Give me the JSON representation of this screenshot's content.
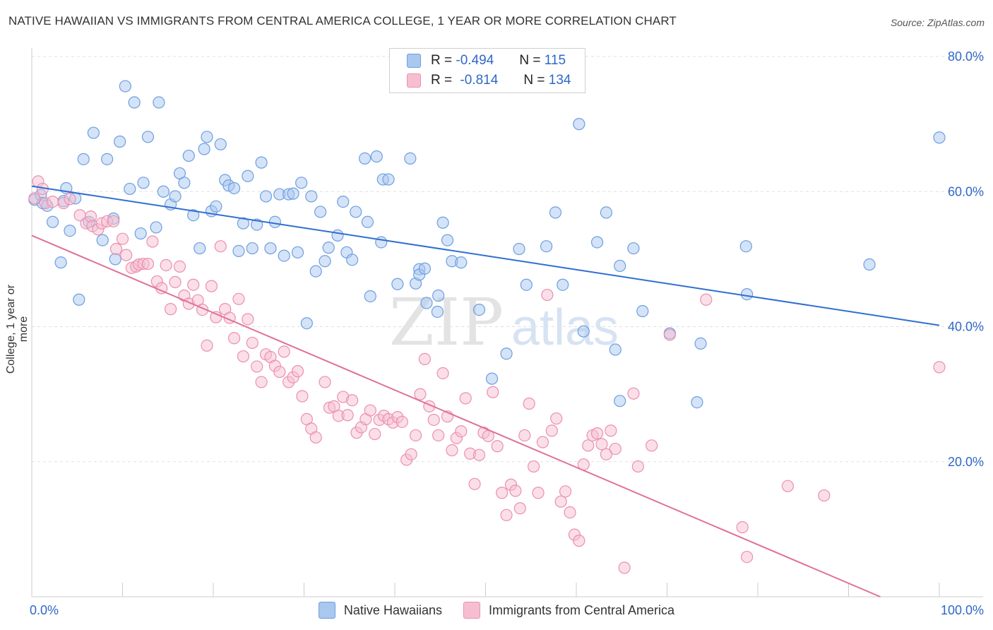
{
  "title": "NATIVE HAWAIIAN VS IMMIGRANTS FROM CENTRAL AMERICA COLLEGE, 1 YEAR OR MORE CORRELATION CHART",
  "source": "Source: ZipAtlas.com",
  "watermark": {
    "zip": "ZIP",
    "atlas": "atlas"
  },
  "legend": {
    "r_label": "R =",
    "n_label": "N =",
    "series1": {
      "r": "-0.494",
      "n": "115"
    },
    "series2": {
      "r": "-0.814",
      "n": "134"
    }
  },
  "colors": {
    "blue_fill": "#a9c7ef",
    "blue_stroke": "#6d9fe0",
    "blue_line": "#2f6fd0",
    "pink_fill": "#f6bfd1",
    "pink_stroke": "#ec8fae",
    "pink_line": "#e0709a",
    "tick_label": "#2f67c7"
  },
  "chart_data": {
    "type": "scatter",
    "xlabel": "",
    "ylabel": "College, 1 year or more",
    "xlim": [
      0,
      100
    ],
    "ylim": [
      0,
      80
    ],
    "x_tick_labels": [
      "0.0%",
      "100.0%"
    ],
    "y_tick_labels": [
      "20.0%",
      "40.0%",
      "60.0%",
      "80.0%"
    ],
    "y_ticks": [
      20,
      40,
      60,
      80
    ],
    "grid": true,
    "series": [
      {
        "name": "Native Hawaiians",
        "trend": {
          "x": [
            0,
            100
          ],
          "y": [
            60.8,
            40.2
          ]
        },
        "points": [
          [
            0.3,
            58.8
          ],
          [
            1,
            59.5
          ],
          [
            1.2,
            58.3
          ],
          [
            1.7,
            57.9
          ],
          [
            2.3,
            55.5
          ],
          [
            3.2,
            49.5
          ],
          [
            3.5,
            58.6
          ],
          [
            3.8,
            60.5
          ],
          [
            4.2,
            54.2
          ],
          [
            4.8,
            59
          ],
          [
            5.2,
            44
          ],
          [
            5.7,
            64.8
          ],
          [
            6.3,
            55.5
          ],
          [
            6.8,
            68.7
          ],
          [
            7.8,
            52.8
          ],
          [
            8.3,
            64.8
          ],
          [
            9,
            56
          ],
          [
            9.2,
            50
          ],
          [
            9.7,
            67.4
          ],
          [
            10.3,
            75.6
          ],
          [
            10.8,
            60.4
          ],
          [
            11.3,
            73.2
          ],
          [
            12,
            53.8
          ],
          [
            12.3,
            61.3
          ],
          [
            12.8,
            68.1
          ],
          [
            13.7,
            54.7
          ],
          [
            14,
            73.2
          ],
          [
            14.5,
            60
          ],
          [
            15.3,
            58.1
          ],
          [
            15.8,
            59.3
          ],
          [
            16.3,
            62.7
          ],
          [
            16.8,
            61.3
          ],
          [
            17.3,
            65.3
          ],
          [
            17.8,
            56.5
          ],
          [
            18.5,
            51.6
          ],
          [
            19,
            66.3
          ],
          [
            19.3,
            68.1
          ],
          [
            19.8,
            57.1
          ],
          [
            20.3,
            57.8
          ],
          [
            20.8,
            67
          ],
          [
            21.3,
            61.7
          ],
          [
            21.7,
            60.9
          ],
          [
            22.3,
            60.5
          ],
          [
            22.8,
            51.2
          ],
          [
            23.3,
            55.3
          ],
          [
            23.8,
            62.3
          ],
          [
            24.3,
            51.6
          ],
          [
            24.8,
            55.1
          ],
          [
            25.3,
            64.3
          ],
          [
            25.8,
            59.3
          ],
          [
            26.3,
            51.6
          ],
          [
            26.8,
            55.5
          ],
          [
            27.3,
            59.6
          ],
          [
            27.8,
            50.5
          ],
          [
            28.3,
            59.6
          ],
          [
            28.8,
            59.7
          ],
          [
            29.3,
            51
          ],
          [
            29.7,
            61.3
          ],
          [
            30.3,
            40.5
          ],
          [
            30.8,
            59.3
          ],
          [
            31.3,
            48.2
          ],
          [
            31.8,
            57
          ],
          [
            32.3,
            49.7
          ],
          [
            32.7,
            51.7
          ],
          [
            33.7,
            53.5
          ],
          [
            34.3,
            58.5
          ],
          [
            34.7,
            51
          ],
          [
            35.3,
            49.9
          ],
          [
            35.7,
            57
          ],
          [
            36.7,
            64.9
          ],
          [
            37,
            55.5
          ],
          [
            37.3,
            44.5
          ],
          [
            38,
            65.2
          ],
          [
            38.5,
            52.5
          ],
          [
            38.7,
            61.8
          ],
          [
            39.3,
            61.8
          ],
          [
            40.3,
            46.3
          ],
          [
            41.7,
            64.9
          ],
          [
            42.3,
            46.4
          ],
          [
            42.7,
            48.5
          ],
          [
            42.7,
            47.7
          ],
          [
            43.3,
            48.6
          ],
          [
            43.5,
            43.5
          ],
          [
            44.7,
            42.2
          ],
          [
            44.8,
            44.6
          ],
          [
            45.3,
            55.4
          ],
          [
            45.8,
            52.8
          ],
          [
            46.3,
            49.7
          ],
          [
            47.3,
            49.5
          ],
          [
            49.3,
            42.5
          ],
          [
            50.7,
            32.3
          ],
          [
            52.3,
            36
          ],
          [
            53.7,
            51.5
          ],
          [
            54.5,
            46.2
          ],
          [
            56.7,
            51.9
          ],
          [
            57.7,
            56.9
          ],
          [
            58.5,
            46.2
          ],
          [
            60.3,
            70
          ],
          [
            60.8,
            39.3
          ],
          [
            62.3,
            52.5
          ],
          [
            63.3,
            56.9
          ],
          [
            64.3,
            36.6
          ],
          [
            64.8,
            29
          ],
          [
            64.8,
            49
          ],
          [
            66.3,
            51.6
          ],
          [
            67.3,
            42.3
          ],
          [
            70.3,
            39
          ],
          [
            73.3,
            28.8
          ],
          [
            73.7,
            37.5
          ],
          [
            78.7,
            51.9
          ],
          [
            78.8,
            44.8
          ],
          [
            92.3,
            49.2
          ],
          [
            100,
            68
          ]
        ]
      },
      {
        "name": "Immigrants from Central America",
        "trend": {
          "x": [
            0,
            93.5
          ],
          "y": [
            53.5,
            0
          ]
        },
        "points": [
          [
            0.3,
            59
          ],
          [
            0.7,
            61.5
          ],
          [
            1.2,
            60.4
          ],
          [
            1.5,
            58.3
          ],
          [
            2.3,
            58.5
          ],
          [
            3.5,
            58.3
          ],
          [
            4.2,
            58.9
          ],
          [
            5.3,
            56.5
          ],
          [
            6,
            55.3
          ],
          [
            6.5,
            56.3
          ],
          [
            6.7,
            54.9
          ],
          [
            7.3,
            54.4
          ],
          [
            7.7,
            55.3
          ],
          [
            8.3,
            55.6
          ],
          [
            9,
            55.6
          ],
          [
            9.3,
            51.5
          ],
          [
            10,
            53
          ],
          [
            10.4,
            50.6
          ],
          [
            11,
            48.7
          ],
          [
            11.5,
            48.9
          ],
          [
            11.8,
            49.2
          ],
          [
            12.3,
            49.3
          ],
          [
            12.8,
            49.3
          ],
          [
            13.3,
            52.6
          ],
          [
            13.8,
            46.7
          ],
          [
            14.3,
            45.7
          ],
          [
            14.8,
            49.1
          ],
          [
            15.3,
            42.6
          ],
          [
            15.8,
            46.6
          ],
          [
            16.3,
            48.9
          ],
          [
            16.8,
            44.6
          ],
          [
            17.3,
            43.4
          ],
          [
            17.8,
            46.2
          ],
          [
            18.3,
            43.9
          ],
          [
            18.8,
            42.5
          ],
          [
            19.3,
            37.2
          ],
          [
            19.8,
            46
          ],
          [
            20.3,
            41.4
          ],
          [
            20.8,
            51.9
          ],
          [
            21.3,
            42.6
          ],
          [
            21.8,
            41.3
          ],
          [
            22.3,
            38.3
          ],
          [
            22.8,
            44.1
          ],
          [
            23.3,
            35.6
          ],
          [
            23.8,
            41.1
          ],
          [
            24.3,
            37.6
          ],
          [
            24.8,
            34.1
          ],
          [
            25.3,
            31.8
          ],
          [
            25.8,
            35.9
          ],
          [
            26.3,
            35.5
          ],
          [
            26.8,
            34.2
          ],
          [
            27.3,
            33.3
          ],
          [
            27.8,
            36.3
          ],
          [
            28.3,
            31.8
          ],
          [
            28.8,
            32.5
          ],
          [
            29.3,
            33.4
          ],
          [
            29.8,
            29.7
          ],
          [
            30.3,
            26.3
          ],
          [
            30.8,
            24.9
          ],
          [
            31.3,
            23.6
          ],
          [
            32.3,
            31.8
          ],
          [
            32.8,
            28
          ],
          [
            33.3,
            28.2
          ],
          [
            33.8,
            26.8
          ],
          [
            34.3,
            29.6
          ],
          [
            34.8,
            26.9
          ],
          [
            35.3,
            29.1
          ],
          [
            35.8,
            24.3
          ],
          [
            36.3,
            25.1
          ],
          [
            36.8,
            26.3
          ],
          [
            37.3,
            27.6
          ],
          [
            37.8,
            24.1
          ],
          [
            38.3,
            26.2
          ],
          [
            38.8,
            26.8
          ],
          [
            39.3,
            26.3
          ],
          [
            39.8,
            25.8
          ],
          [
            40.3,
            26.6
          ],
          [
            40.8,
            25.9
          ],
          [
            41.3,
            20.3
          ],
          [
            41.8,
            21.1
          ],
          [
            42.3,
            23.9
          ],
          [
            42.8,
            30
          ],
          [
            43.3,
            35.2
          ],
          [
            43.8,
            28.2
          ],
          [
            44.3,
            26.2
          ],
          [
            44.8,
            23.9
          ],
          [
            45.3,
            33.1
          ],
          [
            45.8,
            26.7
          ],
          [
            46.3,
            21.7
          ],
          [
            46.8,
            23.5
          ],
          [
            47.3,
            24.5
          ],
          [
            47.8,
            29.4
          ],
          [
            48.3,
            21.2
          ],
          [
            48.8,
            16.7
          ],
          [
            49.3,
            21
          ],
          [
            49.8,
            24.3
          ],
          [
            50.3,
            23.8
          ],
          [
            50.8,
            30.3
          ],
          [
            51.3,
            22.3
          ],
          [
            51.8,
            15.4
          ],
          [
            52.3,
            12.1
          ],
          [
            52.8,
            16.6
          ],
          [
            53.3,
            15.7
          ],
          [
            53.8,
            13.1
          ],
          [
            54.3,
            23.9
          ],
          [
            54.8,
            28.6
          ],
          [
            55.3,
            19.3
          ],
          [
            55.8,
            15.4
          ],
          [
            56.3,
            22.9
          ],
          [
            56.8,
            44.7
          ],
          [
            57.3,
            24.6
          ],
          [
            57.8,
            26.4
          ],
          [
            58.3,
            14.1
          ],
          [
            58.8,
            15.6
          ],
          [
            59.3,
            12.5
          ],
          [
            59.8,
            9.2
          ],
          [
            60.3,
            8.3
          ],
          [
            60.8,
            19.6
          ],
          [
            61.3,
            22.4
          ],
          [
            61.8,
            23.9
          ],
          [
            62.3,
            24.2
          ],
          [
            62.8,
            22.6
          ],
          [
            63.3,
            21.1
          ],
          [
            63.8,
            24.6
          ],
          [
            64.3,
            21.9
          ],
          [
            65.3,
            4.3
          ],
          [
            66.3,
            30.1
          ],
          [
            66.8,
            19.3
          ],
          [
            68.3,
            22.4
          ],
          [
            70.3,
            38.8
          ],
          [
            74.3,
            44
          ],
          [
            78.3,
            10.3
          ],
          [
            78.8,
            5.9
          ],
          [
            83.3,
            16.4
          ],
          [
            87.3,
            15
          ],
          [
            100,
            34
          ]
        ]
      }
    ]
  }
}
